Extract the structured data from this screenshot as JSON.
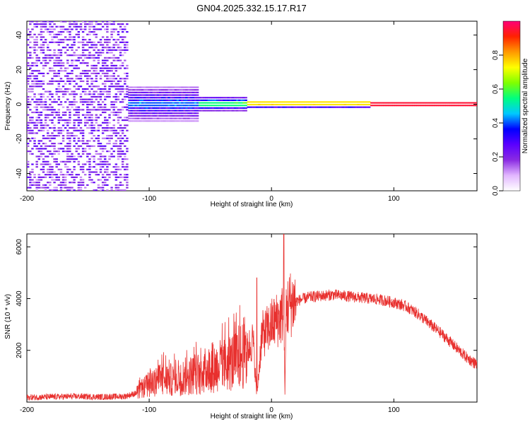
{
  "figure_title": "GN04.2025.332.15.17.R17",
  "chart_data": [
    {
      "type": "heatmap",
      "xlabel": "Height of straight line (km)",
      "ylabel": "Frequency (Hz)",
      "xlim": [
        -200,
        168
      ],
      "ylim": [
        -50,
        48
      ],
      "xticks": [
        -200,
        -100,
        0,
        100
      ],
      "xtick_labels": [
        "-200",
        "-100",
        "0",
        "100"
      ],
      "yticks": [
        -40,
        -20,
        0,
        20,
        40
      ],
      "ytick_labels": [
        "-40",
        "-20",
        "0",
        "20",
        "40"
      ],
      "colorbar": {
        "label": "Normalized spectral amplitude",
        "range": [
          0,
          1
        ],
        "ticks": [
          0.0,
          0.2,
          0.4,
          0.6,
          0.8
        ],
        "tick_labels": [
          "0.0",
          "0.2",
          "0.4",
          "0.6",
          "0.8"
        ],
        "colors": [
          "#ffffff",
          "#e2b6ff",
          "#8a2be2",
          "#5a00ff",
          "#0000ff",
          "#00c8ff",
          "#00ff7f",
          "#7fff00",
          "#ffff00",
          "#ff9900",
          "#ff2200",
          "#ff0077"
        ]
      },
      "regions": [
        {
          "x": [
            -200,
            -118
          ],
          "freq_halfwidth": 50,
          "amplitude": 0.18,
          "description": "broadband noise"
        },
        {
          "x": [
            -118,
            -60
          ],
          "freq_halfwidth": 10,
          "amplitude": 0.4
        },
        {
          "x": [
            -60,
            -20
          ],
          "freq_halfwidth": 4,
          "amplitude": 0.55
        },
        {
          "x": [
            -20,
            80
          ],
          "freq_halfwidth": 2,
          "amplitude": 0.75
        },
        {
          "x": [
            80,
            168
          ],
          "freq_halfwidth": 1,
          "amplitude": 0.95
        }
      ]
    },
    {
      "type": "line",
      "xlabel": "Height of straight line (km)",
      "ylabel": "SNR (10 * v/v)",
      "xlim": [
        -200,
        168
      ],
      "ylim": [
        0,
        6500
      ],
      "xticks": [
        -200,
        -100,
        0,
        100
      ],
      "xtick_labels": [
        "-200",
        "-100",
        "0",
        "100"
      ],
      "yticks": [
        2000,
        4000,
        6000
      ],
      "ytick_labels": [
        "2000",
        "4000",
        "6000"
      ],
      "color": "#e8302e",
      "series": [
        {
          "name": "SNR",
          "x": [
            -200,
            -180,
            -160,
            -140,
            -120,
            -110,
            -100,
            -90,
            -80,
            -70,
            -60,
            -50,
            -40,
            -30,
            -20,
            -15,
            -12,
            -8,
            -5,
            0,
            5,
            8,
            10,
            11,
            12,
            15,
            20,
            30,
            40,
            50,
            60,
            70,
            80,
            90,
            100,
            110,
            120,
            130,
            140,
            150,
            160,
            168
          ],
          "y": [
            180,
            200,
            220,
            200,
            220,
            350,
            700,
            900,
            850,
            1000,
            1100,
            1300,
            1400,
            1600,
            2000,
            2400,
            200,
            2600,
            2700,
            3000,
            3200,
            3300,
            3600,
            300,
            3600,
            3800,
            3900,
            4050,
            4100,
            4150,
            4100,
            4050,
            4000,
            3950,
            3850,
            3700,
            3400,
            3000,
            2600,
            2150,
            1700,
            1450
          ]
        }
      ],
      "spikes": [
        {
          "x": -12,
          "y": 4800
        },
        {
          "x": 10,
          "y": 6500
        }
      ]
    }
  ]
}
